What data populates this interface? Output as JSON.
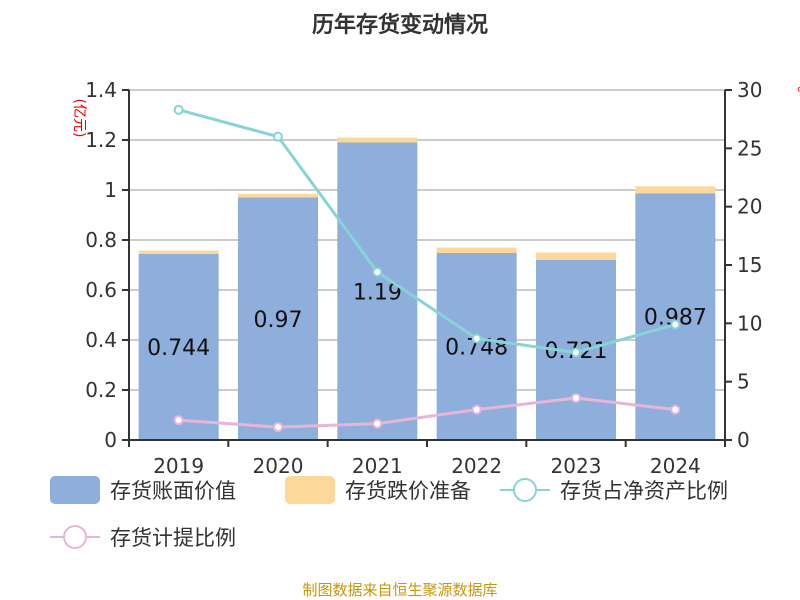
{
  "chart_data": {
    "type": "bar",
    "title": "历年存货变动情况",
    "ylabel": "(亿元)",
    "y2label": "%",
    "categories": [
      "2019",
      "2020",
      "2021",
      "2022",
      "2023",
      "2024"
    ],
    "ylim": [
      0,
      1.4
    ],
    "yticks": [
      "0",
      "0.2",
      "0.4",
      "0.6",
      "0.8",
      "1",
      "1.2",
      "1.4"
    ],
    "y2lim": [
      0,
      30
    ],
    "y2ticks": [
      "0",
      "5",
      "10",
      "15",
      "20",
      "25",
      "30"
    ],
    "series": [
      {
        "name": "存货账面价值",
        "type": "bar",
        "color": "#8eaedb",
        "values": [
          0.744,
          0.97,
          1.19,
          0.748,
          0.721,
          0.987
        ],
        "labels": [
          "0.744",
          "0.97",
          "1.19",
          "0.748",
          "0.721",
          "0.987"
        ]
      },
      {
        "name": "存货跌价准备",
        "type": "bar",
        "color": "#fdd89b",
        "values": [
          0.014,
          0.015,
          0.02,
          0.022,
          0.029,
          0.028
        ]
      },
      {
        "name": "存货占净资产比例",
        "type": "line",
        "axis": "right",
        "color": "#86d4d6",
        "values": [
          28.3,
          26.0,
          14.4,
          8.7,
          7.5,
          9.9
        ]
      },
      {
        "name": "存货计提比例",
        "type": "line",
        "axis": "right",
        "color": "#e8b4d8",
        "values": [
          1.7,
          1.1,
          1.4,
          2.6,
          3.6,
          2.6
        ]
      }
    ],
    "source": "制图数据来自恒生聚源数据库"
  }
}
